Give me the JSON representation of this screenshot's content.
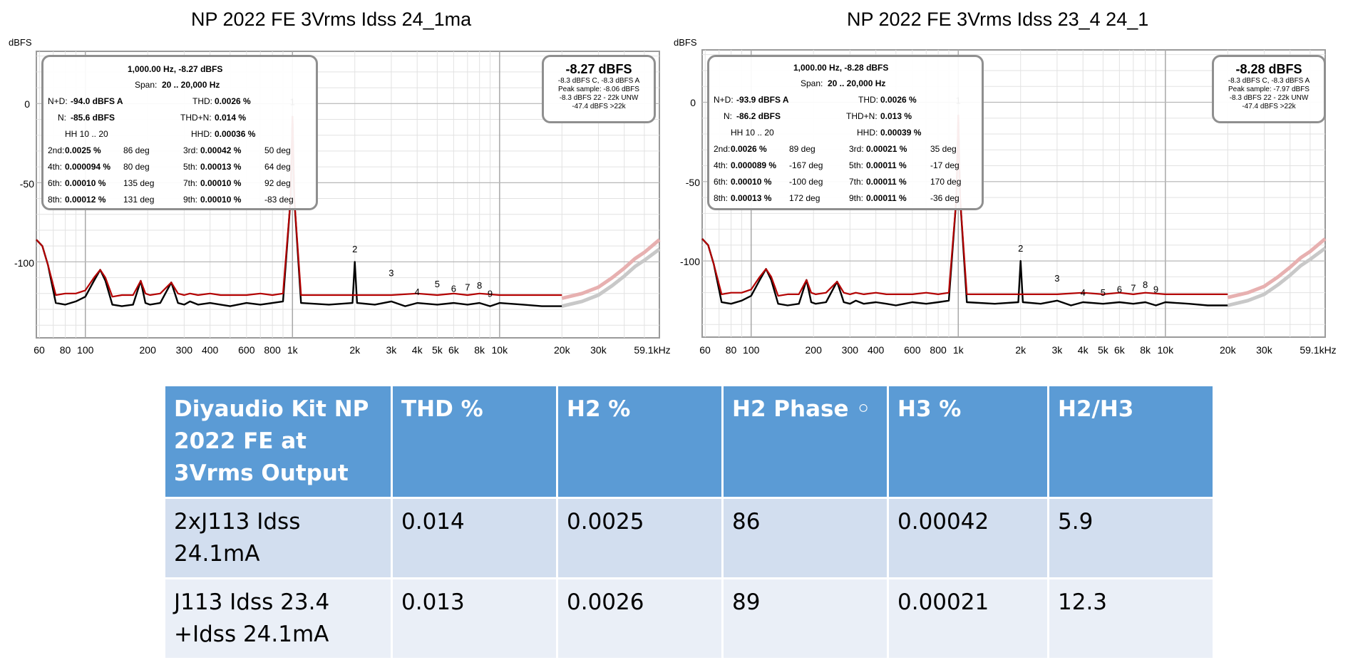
{
  "charts": [
    {
      "title": "NP 2022 FE 3Vrms Idss 24_1ma",
      "unit": "dBFS",
      "info": {
        "header": "1,000.00 Hz, -8.27 dBFS",
        "span_label": "Span:",
        "span": "20 .. 20,000 Hz",
        "nd_label": "N+D:",
        "nd": "-94.0 dBFS A",
        "thd_label": "THD:",
        "thd": "0.0026 %",
        "n_label": "N:",
        "n": "-85.6 dBFS",
        "thdn_label": "THD+N:",
        "thdn": "0.014 %",
        "hh_label": "HH 10 .. 20",
        "hhd_label": "HHD:",
        "hhd": "0.00036 %",
        "harmonics": [
          {
            "label": "2nd:",
            "value": "0.0025 %",
            "phase": "86 deg"
          },
          {
            "label": "3rd:",
            "value": "0.00042 %",
            "phase": "50 deg"
          },
          {
            "label": "4th:",
            "value": "0.000094 %",
            "phase": "80 deg"
          },
          {
            "label": "5th:",
            "value": "0.00013 %",
            "phase": "64 deg"
          },
          {
            "label": "6th:",
            "value": "0.00010 %",
            "phase": "135 deg"
          },
          {
            "label": "7th:",
            "value": "0.00010 %",
            "phase": "92 deg"
          },
          {
            "label": "8th:",
            "value": "0.00012 %",
            "phase": "131 deg"
          },
          {
            "label": "9th:",
            "value": "0.00010 %",
            "phase": "-83 deg"
          }
        ]
      },
      "peak": {
        "value": "-8.27 dBFS",
        "lines": [
          "-8.3 dBFS C, -8.3 dBFS A",
          "Peak sample: -8.06 dBFS",
          "-8.3 dBFS 22 - 22k UNW",
          "-47.4 dBFS >22k"
        ]
      }
    },
    {
      "title": "NP 2022 FE 3Vrms Idss 23_4 24_1",
      "unit": "dBFS",
      "info": {
        "header": "1,000.00 Hz, -8.28 dBFS",
        "span_label": "Span:",
        "span": "20 .. 20,000 Hz",
        "nd_label": "N+D:",
        "nd": "-93.9 dBFS A",
        "thd_label": "THD:",
        "thd": "0.0026 %",
        "n_label": "N:",
        "n": "-86.2 dBFS",
        "thdn_label": "THD+N:",
        "thdn": "0.013 %",
        "hh_label": "HH 10 .. 20",
        "hhd_label": "HHD:",
        "hhd": "0.00039 %",
        "harmonics": [
          {
            "label": "2nd:",
            "value": "0.0026 %",
            "phase": "89 deg"
          },
          {
            "label": "3rd:",
            "value": "0.00021 %",
            "phase": "35 deg"
          },
          {
            "label": "4th:",
            "value": "0.000089 %",
            "phase": "-167 deg"
          },
          {
            "label": "5th:",
            "value": "0.00011 %",
            "phase": "-17 deg"
          },
          {
            "label": "6th:",
            "value": "0.00010 %",
            "phase": "-100 deg"
          },
          {
            "label": "7th:",
            "value": "0.00011 %",
            "phase": "170 deg"
          },
          {
            "label": "8th:",
            "value": "0.00013 %",
            "phase": "172 deg"
          },
          {
            "label": "9th:",
            "value": "0.00011 %",
            "phase": "-36 deg"
          }
        ]
      },
      "peak": {
        "value": "-8.28 dBFS",
        "lines": [
          "-8.3 dBFS C, -8.3 dBFS A",
          "Peak sample: -7.97 dBFS",
          "-8.3 dBFS 22 - 22k UNW",
          "-47.4 dBFS >22k"
        ]
      }
    }
  ],
  "chart_data": [
    {
      "type": "line",
      "title": "NP 2022 FE 3Vrms Idss 24_1ma",
      "ylabel": "dBFS",
      "x_scale": "log",
      "xlim": [
        58,
        59100
      ],
      "ylim": [
        -148,
        33
      ],
      "y_ticks": [
        0,
        -50,
        -100
      ],
      "y_tick_labels": [
        "0",
        "-50",
        "-100"
      ],
      "x_ticks": [
        60,
        80,
        100,
        200,
        300,
        400,
        600,
        800,
        1000,
        2000,
        3000,
        4000,
        5000,
        6000,
        8000,
        10000,
        20000,
        30000,
        59100
      ],
      "x_tick_labels": [
        "60",
        "80",
        "100",
        "200",
        "300",
        "400",
        "600",
        "800",
        "1k",
        "2k",
        "3k",
        "4k",
        "5k",
        "6k",
        "8k",
        "10k",
        "20k",
        "30k",
        "59.1kHz"
      ],
      "series": [
        {
          "color": "#000000",
          "x": [
            58,
            62,
            66,
            72,
            80,
            90,
            100,
            110,
            118,
            125,
            135,
            150,
            170,
            185,
            195,
            205,
            230,
            260,
            280,
            300,
            320,
            350,
            400,
            450,
            500,
            600,
            700,
            800,
            900,
            980,
            1000,
            1020,
            1100,
            1500,
            1950,
            2000,
            2050,
            2500,
            3000,
            3500,
            4000,
            5000,
            6000,
            7000,
            8000,
            9000,
            10000,
            13000,
            16000,
            20000
          ],
          "y": [
            -86,
            -90,
            -102,
            -126,
            -127,
            -125,
            -122,
            -112,
            -105,
            -112,
            -127,
            -128,
            -127,
            -112,
            -126,
            -127,
            -126,
            -113,
            -126,
            -127,
            -125,
            -127,
            -126,
            -127,
            -128,
            -126,
            -127,
            -126,
            -125,
            -60,
            -8.3,
            -60,
            -126,
            -127,
            -126,
            -100,
            -126,
            -127,
            -125,
            -128,
            -126,
            -127,
            -126,
            -127,
            -126,
            -128,
            -126,
            -127,
            -128,
            -128
          ]
        },
        {
          "color": "#b30000",
          "x": [
            58,
            62,
            66,
            72,
            80,
            90,
            100,
            110,
            118,
            125,
            135,
            150,
            170,
            185,
            195,
            205,
            230,
            260,
            280,
            300,
            320,
            350,
            400,
            450,
            500,
            600,
            700,
            800,
            900,
            980,
            1000,
            1020,
            1100,
            1500,
            2000,
            3000,
            4000,
            5000,
            6000,
            7000,
            8000,
            10000,
            13000,
            16000,
            20000
          ],
          "y": [
            -86,
            -90,
            -102,
            -121,
            -120,
            -120,
            -118,
            -110,
            -105,
            -110,
            -122,
            -121,
            -121,
            -112,
            -120,
            -121,
            -120,
            -113,
            -120,
            -121,
            -120,
            -121,
            -120,
            -121,
            -121,
            -121,
            -120,
            -121,
            -120,
            -60,
            -8.3,
            -60,
            -121,
            -121,
            -121,
            -121,
            -120,
            -121,
            -120,
            -121,
            -120,
            -121,
            -121,
            -121,
            -121
          ]
        },
        {
          "color": "#e7b0b0",
          "x": [
            20000,
            25000,
            30000,
            35000,
            40000,
            45000,
            50000,
            59100
          ],
          "y": [
            -123,
            -120,
            -116,
            -110,
            -104,
            -98,
            -94,
            -86
          ]
        },
        {
          "color": "#c8c8c8",
          "x": [
            20000,
            25000,
            30000,
            35000,
            40000,
            45000,
            50000,
            59100
          ],
          "y": [
            -128,
            -125,
            -121,
            -115,
            -109,
            -103,
            -99,
            -92
          ]
        }
      ],
      "annotations": [
        {
          "text": "1",
          "x": 1000,
          "y": -1
        },
        {
          "text": "2",
          "x": 2000,
          "y": -94
        },
        {
          "text": "3",
          "x": 3000,
          "y": -109
        },
        {
          "text": "4",
          "x": 4000,
          "y": -121
        },
        {
          "text": "5",
          "x": 5000,
          "y": -116
        },
        {
          "text": "6",
          "x": 6000,
          "y": -119
        },
        {
          "text": "7",
          "x": 7000,
          "y": -118
        },
        {
          "text": "8",
          "x": 8000,
          "y": -117
        },
        {
          "text": "9",
          "x": 9000,
          "y": -122
        }
      ],
      "grid": true
    },
    {
      "type": "line",
      "title": "NP 2022 FE 3Vrms Idss 23_4 24_1",
      "ylabel": "dBFS",
      "x_scale": "log",
      "xlim": [
        58,
        59100
      ],
      "ylim": [
        -148,
        33
      ],
      "y_ticks": [
        0,
        -50,
        -100
      ],
      "y_tick_labels": [
        "0",
        "-50",
        "-100"
      ],
      "x_ticks": [
        60,
        80,
        100,
        200,
        300,
        400,
        600,
        800,
        1000,
        2000,
        3000,
        4000,
        5000,
        6000,
        8000,
        10000,
        20000,
        30000,
        59100
      ],
      "x_tick_labels": [
        "60",
        "80",
        "100",
        "200",
        "300",
        "400",
        "600",
        "800",
        "1k",
        "2k",
        "3k",
        "4k",
        "5k",
        "6k",
        "8k",
        "10k",
        "20k",
        "30k",
        "59.1kHz"
      ],
      "series": [
        {
          "color": "#000000",
          "x": [
            58,
            62,
            66,
            72,
            80,
            90,
            100,
            110,
            118,
            125,
            135,
            150,
            170,
            185,
            195,
            205,
            230,
            260,
            280,
            300,
            320,
            350,
            400,
            450,
            500,
            600,
            700,
            800,
            900,
            980,
            1000,
            1020,
            1100,
            1500,
            1950,
            2000,
            2050,
            2500,
            3000,
            3500,
            4000,
            5000,
            6000,
            7000,
            8000,
            9000,
            10000,
            13000,
            16000,
            20000
          ],
          "y": [
            -86,
            -90,
            -102,
            -126,
            -127,
            -125,
            -122,
            -112,
            -105,
            -112,
            -127,
            -128,
            -127,
            -112,
            -126,
            -127,
            -126,
            -113,
            -126,
            -127,
            -125,
            -127,
            -126,
            -127,
            -128,
            -126,
            -127,
            -126,
            -125,
            -60,
            -8.3,
            -60,
            -126,
            -127,
            -126,
            -100,
            -126,
            -127,
            -125,
            -128,
            -126,
            -127,
            -126,
            -127,
            -126,
            -128,
            -126,
            -127,
            -128,
            -128
          ]
        },
        {
          "color": "#b30000",
          "x": [
            58,
            62,
            66,
            72,
            80,
            90,
            100,
            110,
            118,
            125,
            135,
            150,
            170,
            185,
            195,
            205,
            230,
            260,
            280,
            300,
            320,
            350,
            400,
            450,
            500,
            600,
            700,
            800,
            900,
            980,
            1000,
            1020,
            1100,
            1500,
            2000,
            3000,
            4000,
            5000,
            6000,
            7000,
            8000,
            10000,
            13000,
            16000,
            20000
          ],
          "y": [
            -86,
            -90,
            -102,
            -121,
            -120,
            -120,
            -118,
            -110,
            -105,
            -110,
            -122,
            -121,
            -121,
            -112,
            -120,
            -121,
            -120,
            -113,
            -120,
            -121,
            -120,
            -121,
            -120,
            -121,
            -121,
            -121,
            -120,
            -121,
            -120,
            -60,
            -8.3,
            -60,
            -121,
            -121,
            -121,
            -121,
            -120,
            -121,
            -120,
            -121,
            -120,
            -121,
            -121,
            -121,
            -121
          ]
        },
        {
          "color": "#e7b0b0",
          "x": [
            20000,
            25000,
            30000,
            35000,
            40000,
            45000,
            50000,
            59100
          ],
          "y": [
            -123,
            -120,
            -116,
            -110,
            -104,
            -98,
            -94,
            -86
          ]
        },
        {
          "color": "#c8c8c8",
          "x": [
            20000,
            25000,
            30000,
            35000,
            40000,
            45000,
            50000,
            59100
          ],
          "y": [
            -128,
            -125,
            -121,
            -115,
            -109,
            -103,
            -99,
            -92
          ]
        }
      ],
      "annotations": [
        {
          "text": "1",
          "x": 1000,
          "y": -1
        },
        {
          "text": "2",
          "x": 2000,
          "y": -94
        },
        {
          "text": "3",
          "x": 3000,
          "y": -113
        },
        {
          "text": "4",
          "x": 4000,
          "y": -122
        },
        {
          "text": "5",
          "x": 5000,
          "y": -122
        },
        {
          "text": "6",
          "x": 6000,
          "y": -120
        },
        {
          "text": "7",
          "x": 7000,
          "y": -119
        },
        {
          "text": "8",
          "x": 8000,
          "y": -117
        },
        {
          "text": "9",
          "x": 9000,
          "y": -120
        }
      ],
      "grid": true
    },
    {
      "type": "table",
      "columns": [
        "Diyaudio Kit NP 2022 FE at 3Vrms Output",
        "THD %",
        "H2 %",
        "H2 Phase ◦",
        "H3 %",
        "H2/H3"
      ],
      "rows": [
        [
          "2xJ113 Idss 24.1mA",
          "0.014",
          "0.0025",
          "86",
          "0.00042",
          "5.9"
        ],
        [
          "J113 Idss 23.4 +Idss 24.1mA",
          "0.013",
          "0.0026",
          "89",
          "0.00021",
          "12.3"
        ]
      ]
    }
  ],
  "table": {
    "header": [
      "Diyaudio Kit NP 2022 FE at 3Vrms Output",
      "THD %",
      "H2 %",
      "H2 Phase ◦",
      "H3 %",
      "H2/H3"
    ],
    "rows": [
      [
        "2xJ113 Idss 24.1mA",
        "0.014",
        "0.0025",
        "86",
        "0.00042",
        "5.9"
      ],
      [
        "J113 Idss 23.4 +Idss 24.1mA",
        "0.013",
        "0.0026",
        "89",
        "0.00021",
        "12.3"
      ]
    ]
  }
}
